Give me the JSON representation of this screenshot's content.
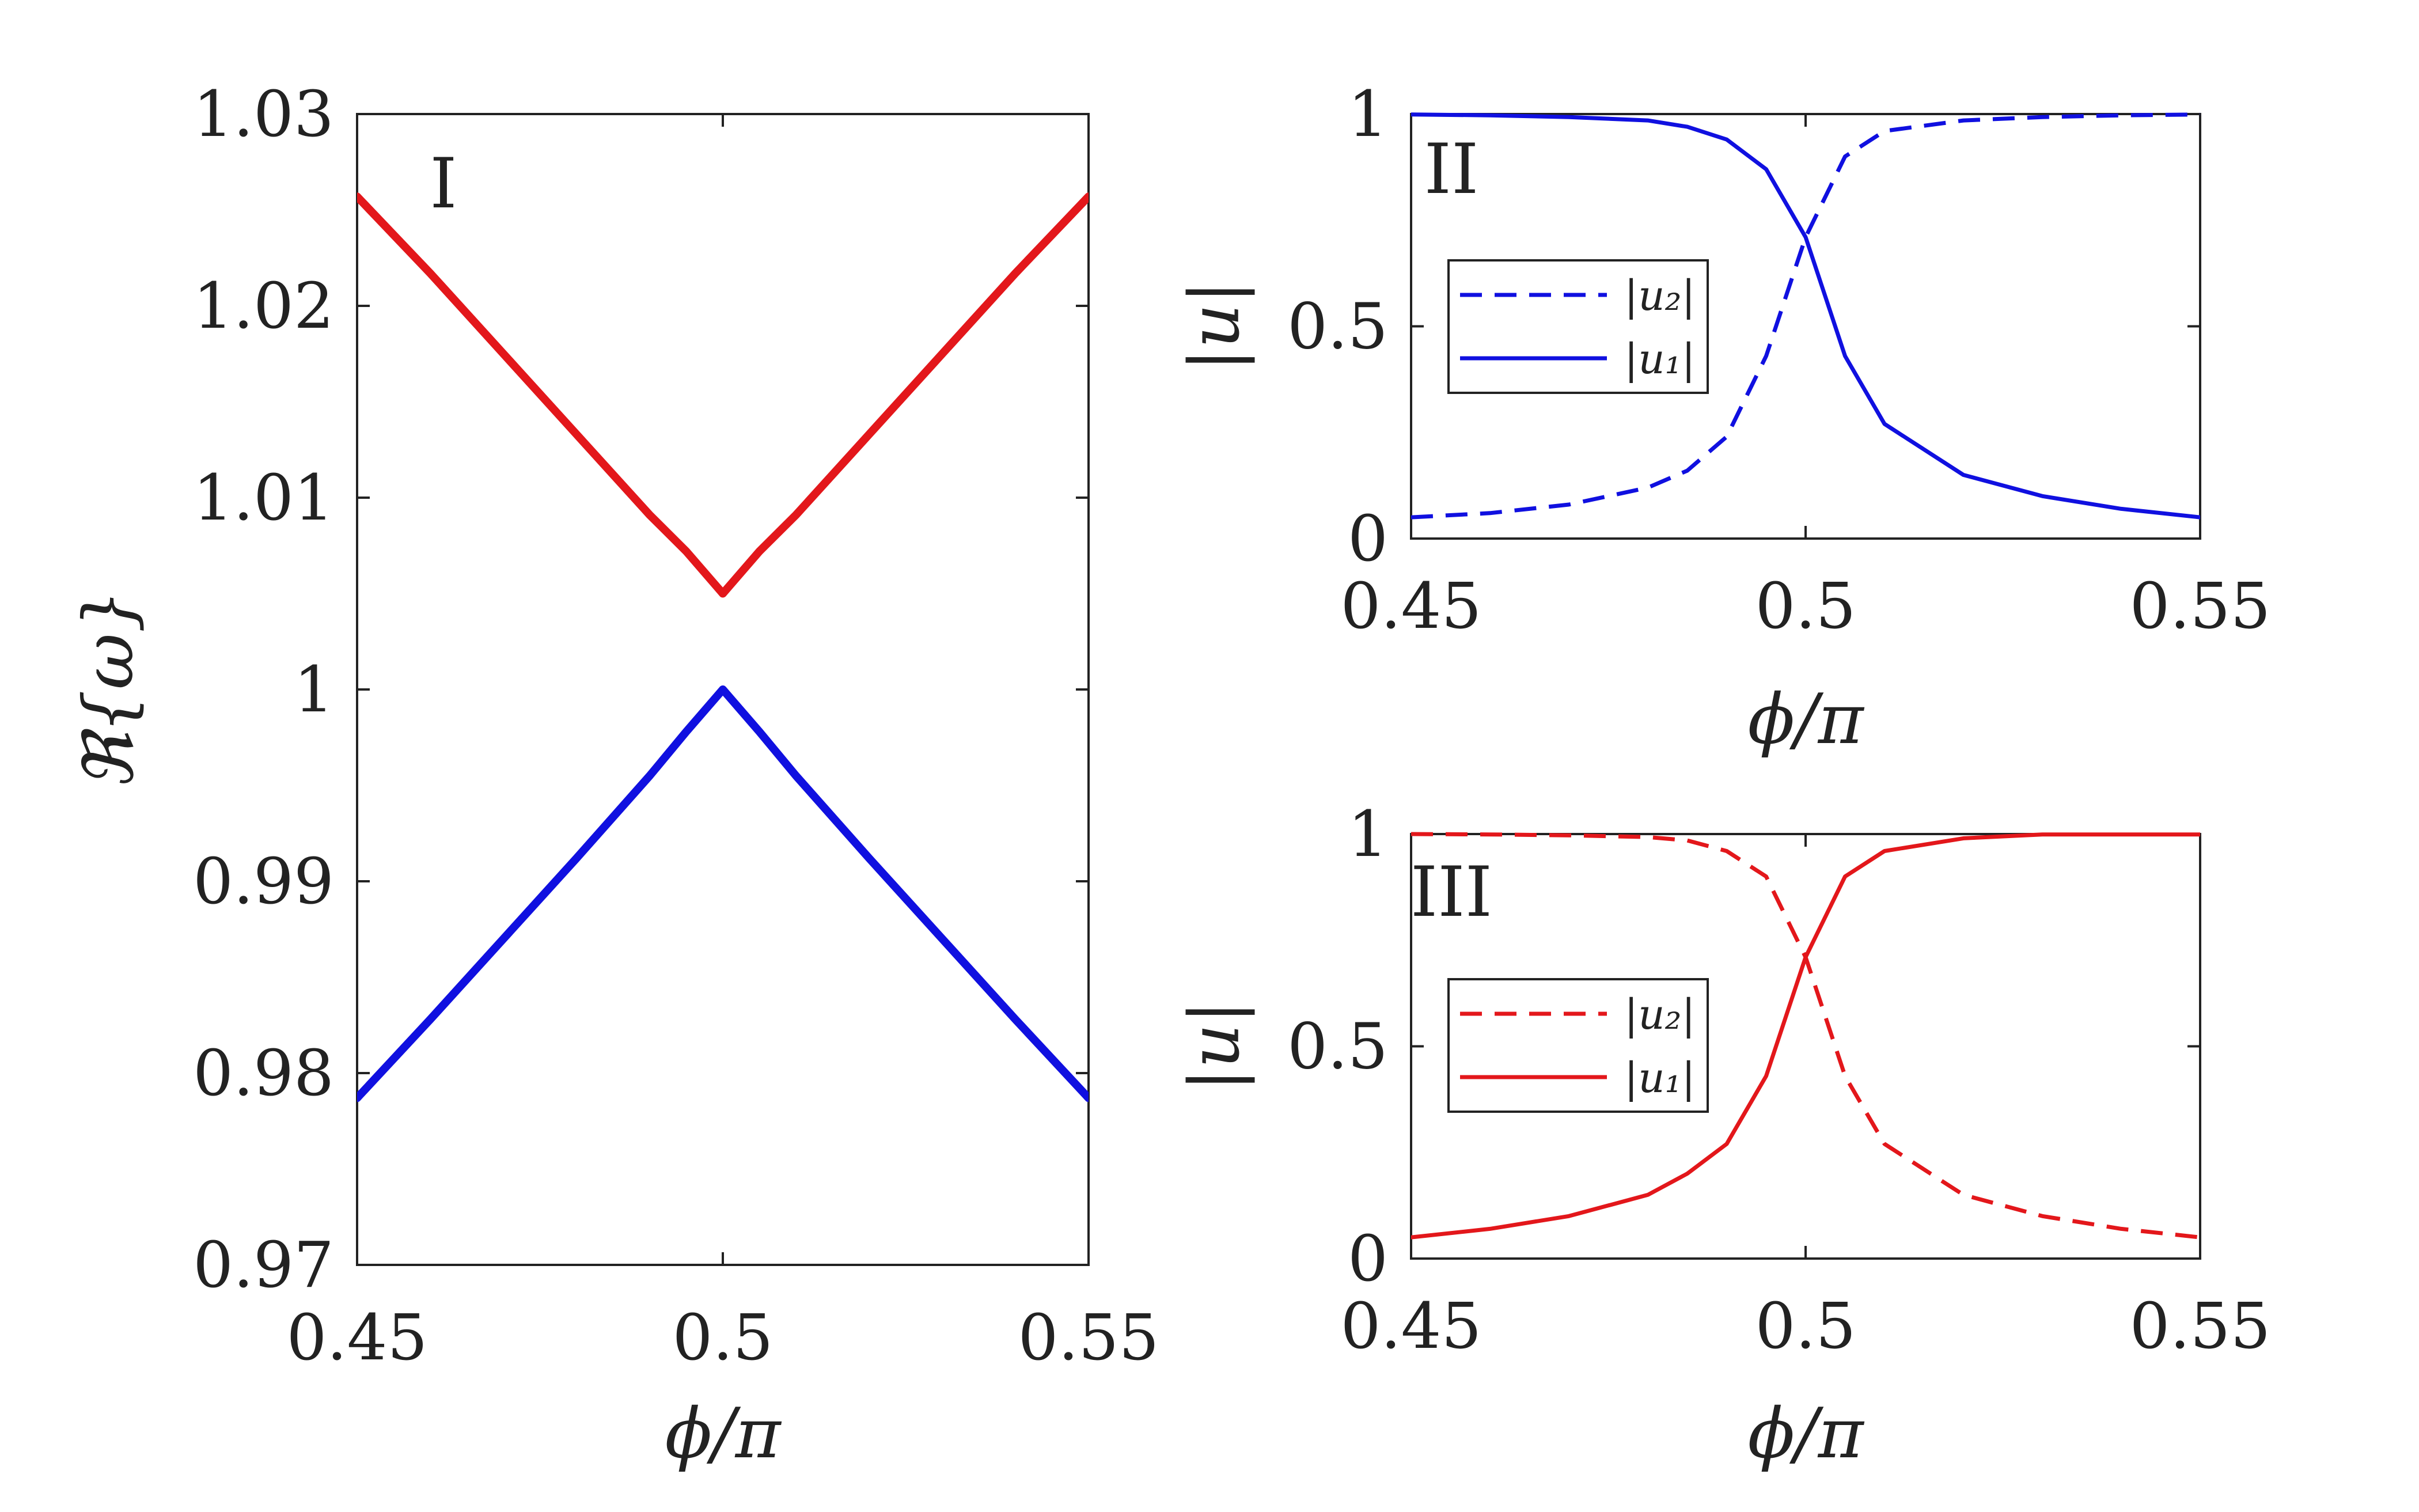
{
  "chart_data": [
    {
      "id": "I",
      "type": "line",
      "panel_label": "I",
      "xlabel": "ϕ/π",
      "ylabel": "ℜ{ω}",
      "xlim": [
        0.45,
        0.55
      ],
      "ylim": [
        0.97,
        1.03
      ],
      "xticks": [
        "0.45",
        "0.5",
        "0.55"
      ],
      "yticks": [
        "0.97",
        "0.98",
        "0.99",
        "1",
        "1.01",
        "1.02",
        "1.03"
      ],
      "grid": false,
      "series": [
        {
          "color": "#e3171b",
          "dash": "solid",
          "x": [
            0.45,
            0.46,
            0.47,
            0.48,
            0.49,
            0.495,
            0.5,
            0.505,
            0.51,
            0.52,
            0.53,
            0.54,
            0.55
          ],
          "y": [
            1.0257,
            1.0217,
            1.0175,
            1.0133,
            1.0091,
            1.0072,
            1.005,
            1.0072,
            1.0091,
            1.0133,
            1.0175,
            1.0217,
            1.0257
          ]
        },
        {
          "color": "#1010e0",
          "dash": "solid",
          "x": [
            0.45,
            0.46,
            0.47,
            0.48,
            0.49,
            0.495,
            0.5,
            0.505,
            0.51,
            0.52,
            0.53,
            0.54,
            0.55
          ],
          "y": [
            0.9787,
            0.9828,
            0.987,
            0.9912,
            0.9955,
            0.9978,
            1.0,
            0.9978,
            0.9955,
            0.9912,
            0.987,
            0.9828,
            0.9787
          ]
        }
      ]
    },
    {
      "id": "II",
      "type": "line",
      "panel_label": "II",
      "xlabel": "ϕ/π",
      "ylabel": "|u|",
      "xlim": [
        0.45,
        0.55
      ],
      "ylim": [
        0,
        1
      ],
      "xticks": [
        "0.45",
        "0.5",
        "0.55"
      ],
      "yticks": [
        "0",
        "0.5",
        "1"
      ],
      "grid": false,
      "legend": {
        "placement": "left"
      },
      "series": [
        {
          "name": "|u₂|",
          "color": "#1010e0",
          "dash": "dashed",
          "x": [
            0.45,
            0.46,
            0.47,
            0.48,
            0.485,
            0.49,
            0.495,
            0.5,
            0.505,
            0.51,
            0.52,
            0.53,
            0.54,
            0.55
          ],
          "y": [
            0.05,
            0.06,
            0.08,
            0.12,
            0.16,
            0.24,
            0.43,
            0.71,
            0.9,
            0.96,
            0.985,
            0.993,
            0.997,
            0.999
          ]
        },
        {
          "name": "|u₁|",
          "color": "#1010e0",
          "dash": "solid",
          "x": [
            0.45,
            0.46,
            0.47,
            0.48,
            0.485,
            0.49,
            0.495,
            0.5,
            0.505,
            0.51,
            0.52,
            0.53,
            0.54,
            0.55
          ],
          "y": [
            0.999,
            0.997,
            0.993,
            0.985,
            0.97,
            0.94,
            0.87,
            0.71,
            0.43,
            0.27,
            0.15,
            0.1,
            0.07,
            0.05
          ]
        }
      ]
    },
    {
      "id": "III",
      "type": "line",
      "panel_label": "III",
      "xlabel": "ϕ/π",
      "ylabel": "|u|",
      "xlim": [
        0.45,
        0.55
      ],
      "ylim": [
        0,
        1
      ],
      "xticks": [
        "0.45",
        "0.5",
        "0.55"
      ],
      "yticks": [
        "0",
        "0.5",
        "1"
      ],
      "grid": false,
      "legend": {
        "placement": "left"
      },
      "series": [
        {
          "name": "|u₂|",
          "color": "#e3171b",
          "dash": "dashed",
          "x": [
            0.45,
            0.46,
            0.47,
            0.48,
            0.485,
            0.49,
            0.495,
            0.5,
            0.505,
            0.51,
            0.52,
            0.53,
            0.54,
            0.55
          ],
          "y": [
            1.0,
            0.999,
            0.997,
            0.993,
            0.985,
            0.96,
            0.9,
            0.71,
            0.43,
            0.27,
            0.15,
            0.1,
            0.07,
            0.05
          ]
        },
        {
          "name": "|u₁|",
          "color": "#e3171b",
          "dash": "solid",
          "x": [
            0.45,
            0.46,
            0.47,
            0.48,
            0.485,
            0.49,
            0.495,
            0.5,
            0.505,
            0.51,
            0.52,
            0.53,
            0.54,
            0.55
          ],
          "y": [
            0.05,
            0.07,
            0.1,
            0.15,
            0.2,
            0.27,
            0.43,
            0.71,
            0.9,
            0.96,
            0.99,
            0.999,
            0.999,
            0.999
          ]
        }
      ]
    }
  ]
}
